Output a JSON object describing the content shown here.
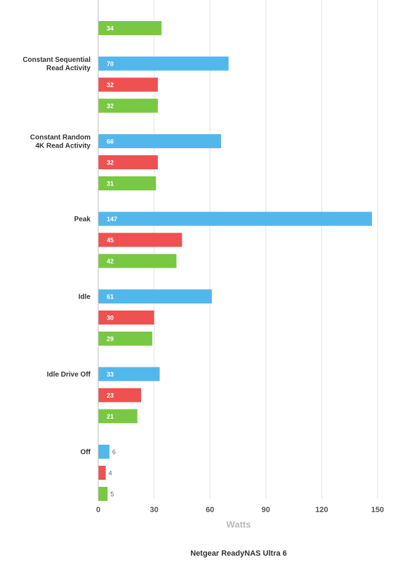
{
  "chart_data": {
    "type": "bar",
    "orientation": "horizontal",
    "categories": [
      "",
      "Constant Sequential\nRead Activity",
      "Constant Random\n4K Read Activity",
      "Peak",
      "Idle",
      "Idle Drive Off",
      "Off"
    ],
    "series": [
      {
        "color": "#52b8ec",
        "values": [
          null,
          70,
          66,
          147,
          61,
          33,
          6
        ]
      },
      {
        "color": "#ef5050",
        "values": [
          null,
          32,
          32,
          45,
          30,
          23,
          4
        ]
      },
      {
        "color": "#79c843",
        "values": [
          34,
          32,
          31,
          42,
          29,
          21,
          5
        ]
      }
    ],
    "xlim": [
      0,
      150
    ],
    "xticks": [
      0,
      30,
      60,
      90,
      120,
      150
    ],
    "xlabel": "Watts",
    "caption": "Netgear ReadyNAS Ultra 6",
    "grid": true
  }
}
